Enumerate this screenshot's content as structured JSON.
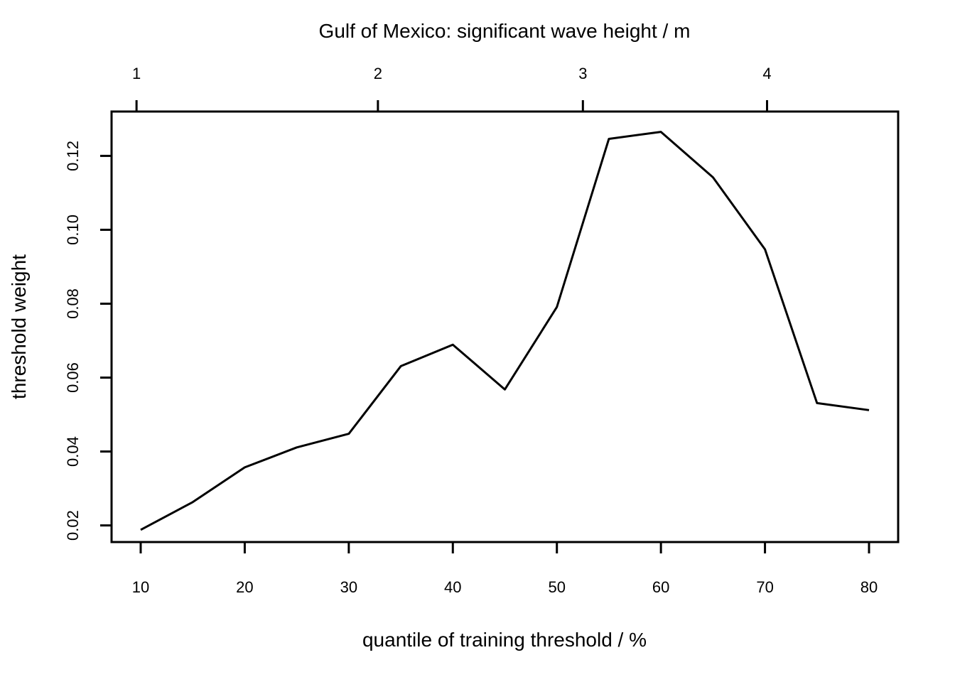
{
  "chart_data": {
    "type": "line",
    "top_axis_title": "Gulf of Mexico: significant wave height / m",
    "top_axis_ticks": [
      {
        "label": "1",
        "x_value": 9.6
      },
      {
        "label": "2",
        "x_value": 32.8
      },
      {
        "label": "3",
        "x_value": 52.5
      },
      {
        "label": "4",
        "x_value": 70.2
      }
    ],
    "xlabel": "quantile of training threshold / %",
    "ylabel": "threshold weight",
    "x_ticks": [
      10,
      20,
      30,
      40,
      50,
      60,
      70,
      80
    ],
    "x_tick_labels": [
      "10",
      "20",
      "30",
      "40",
      "50",
      "60",
      "70",
      "80"
    ],
    "y_ticks": [
      0.02,
      0.04,
      0.06,
      0.08,
      0.1,
      0.12
    ],
    "y_tick_labels": [
      "0.02",
      "0.04",
      "0.06",
      "0.08",
      "0.10",
      "0.12"
    ],
    "xlim": [
      7.2,
      82.8
    ],
    "ylim": [
      0.0155,
      0.132
    ],
    "grid": false,
    "series": [
      {
        "x": [
          10,
          15,
          20,
          25,
          30,
          35,
          40,
          45,
          50,
          55,
          60,
          65,
          70,
          75,
          80
        ],
        "y": [
          0.0188,
          0.0263,
          0.0357,
          0.0411,
          0.0448,
          0.0631,
          0.0689,
          0.0568,
          0.0791,
          0.1246,
          0.1265,
          0.1142,
          0.0947,
          0.0531,
          0.0512
        ],
        "color": "#000000"
      }
    ]
  }
}
